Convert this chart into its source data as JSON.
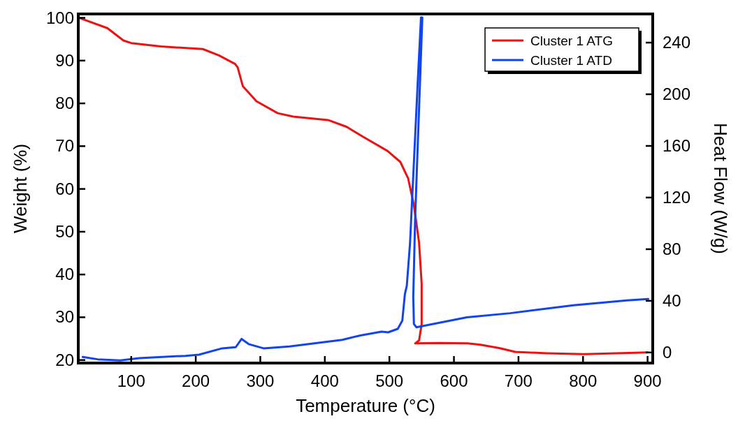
{
  "chart_data": {
    "type": "line",
    "xlabel": "Temperature (°C)",
    "ylabel": "Weight (%)",
    "y2label": "Heat Flow (W/g)",
    "xlim": [
      18,
      908
    ],
    "xticks": [
      100,
      200,
      300,
      400,
      500,
      600,
      700,
      800,
      900
    ],
    "ylim": [
      19.3,
      100.9
    ],
    "yticks": [
      20,
      30,
      40,
      50,
      60,
      70,
      80,
      90,
      100
    ],
    "y2lim": [
      -8.2,
      262.2
    ],
    "y2ticks": [
      0,
      40,
      80,
      120,
      160,
      200,
      240
    ],
    "legend": "top right",
    "grid": false,
    "line_style": "solid",
    "marker": "none",
    "series": [
      {
        "name": "Cluster 1 ATG",
        "color": "#ee1111",
        "x": [
          21,
          63,
          88,
          100,
          146,
          211,
          236,
          261,
          265,
          273,
          294,
          327,
          351,
          405,
          434,
          458,
          497,
          517,
          529,
          538,
          546,
          550,
          550,
          546,
          540,
          579,
          621,
          641,
          670,
          695,
          744,
          802,
          900
        ],
        "values": [
          99.9,
          97.6,
          94.7,
          94.1,
          93.3,
          92.7,
          91.2,
          89.2,
          88.4,
          84.0,
          80.5,
          77.7,
          76.9,
          76.1,
          74.5,
          72.3,
          68.9,
          66.3,
          62.5,
          56.2,
          47.4,
          37.8,
          28.4,
          24.6,
          23.9,
          24.0,
          23.9,
          23.6,
          22.8,
          21.9,
          21.6,
          21.4,
          21.8
        ]
      },
      {
        "name": "Cluster 1 ATD",
        "color": "#1144ee",
        "axis": "y2",
        "x": [
          25,
          48,
          83,
          112,
          184,
          205,
          241,
          262,
          271,
          282,
          305,
          345,
          427,
          455,
          488,
          498,
          513,
          520,
          524,
          527,
          532,
          538,
          544,
          549,
          551,
          546,
          540,
          537,
          538,
          542,
          620,
          687,
          785,
          868,
          901
        ],
        "values": [
          -3.5,
          -5.3,
          -6.2,
          -4.4,
          -2.6,
          -1.7,
          3.2,
          4.1,
          10.5,
          6.5,
          3.2,
          4.7,
          9.8,
          13.2,
          16.1,
          15.6,
          18.3,
          24.6,
          45.1,
          51.8,
          84.8,
          147.4,
          210.3,
          259.5,
          259.5,
          189.4,
          105.7,
          43.0,
          22.0,
          19.5,
          27.2,
          30.4,
          36.6,
          40.4,
          41.4
        ]
      }
    ]
  }
}
